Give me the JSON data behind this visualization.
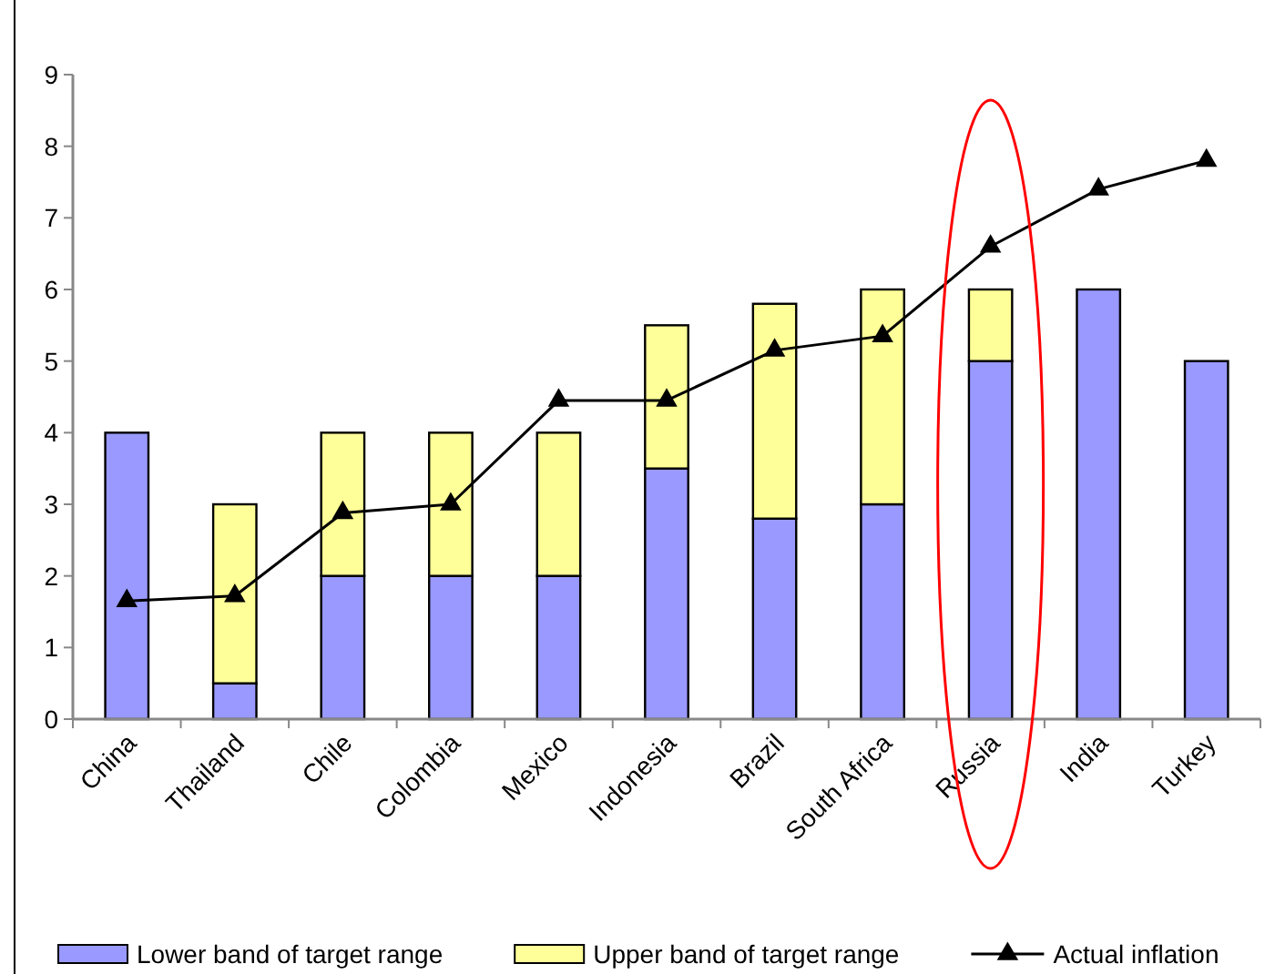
{
  "chart_data": {
    "type": "bar",
    "stacked": true,
    "categories": [
      "China",
      "Thailand",
      "Chile",
      "Colombia",
      "Mexico",
      "Indonesia",
      "Brazil",
      "South Africa",
      "Russia",
      "India",
      "Turkey"
    ],
    "series": [
      {
        "name": "Lower band of target range",
        "color": "#9999ff",
        "values": [
          4,
          0.5,
          2,
          2,
          2,
          3.5,
          2.8,
          3,
          5,
          6,
          5
        ]
      },
      {
        "name": "Upper band of target range",
        "color": "#ffff99",
        "values": [
          0,
          2.5,
          2,
          2,
          2,
          2,
          3,
          3,
          1,
          0,
          0
        ]
      },
      {
        "name": "Actual inflation",
        "type": "line",
        "color": "#000000",
        "marker": "triangle",
        "values": [
          1.65,
          1.72,
          2.88,
          3.0,
          4.45,
          4.45,
          5.15,
          5.35,
          6.6,
          7.4,
          7.8
        ]
      }
    ],
    "ylim": [
      0,
      9
    ],
    "yticks": [
      0,
      1,
      2,
      3,
      4,
      5,
      6,
      7,
      8,
      9
    ],
    "grid": false,
    "legend": "bottom"
  }
}
